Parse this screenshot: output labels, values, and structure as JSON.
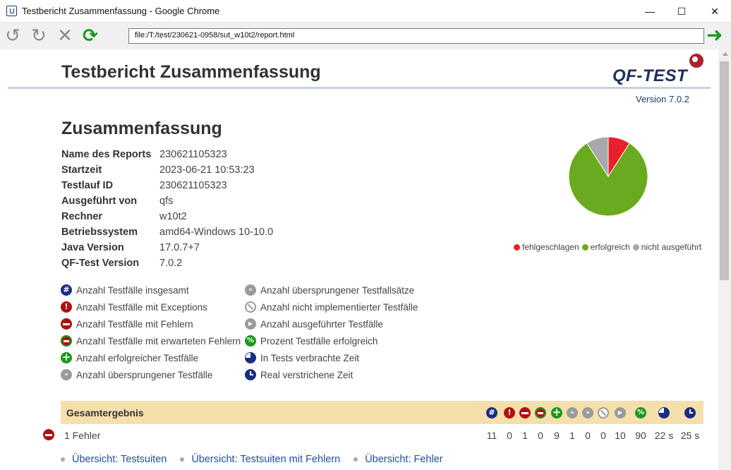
{
  "window": {
    "title": "Testbericht Zusammenfassung - Google Chrome",
    "minimize": "—",
    "maximize": "☐",
    "close": "✕"
  },
  "toolbar": {
    "address": "file:/T:/test/230621-0958/sut_w10t2/report.html"
  },
  "page": {
    "title": "Testbericht Zusammenfassung",
    "logo": "QF-TEST",
    "version": "Version 7.0.2",
    "section_title": "Zusammenfassung"
  },
  "info": [
    {
      "key": "Name des Reports",
      "value": "230621105323"
    },
    {
      "key": "Startzeit",
      "value": "2023-06-21 10:53:23"
    },
    {
      "key": "Testlauf ID",
      "value": "230621105323"
    },
    {
      "key": "Ausgeführt von",
      "value": "qfs"
    },
    {
      "key": "Rechner",
      "value": "w10t2"
    },
    {
      "key": "Betriebssystem",
      "value": "amd64-Windows 10-10.0"
    },
    {
      "key": "Java Version",
      "value": "17.0.7+7"
    },
    {
      "key": "QF-Test Version",
      "value": "7.0.2"
    }
  ],
  "pie": {
    "slices": [
      {
        "label": "fehlgeschlagen",
        "value": 1,
        "color": "#e8202a"
      },
      {
        "label": "erfolgreich",
        "value": 9,
        "color": "#6aaa1e"
      },
      {
        "label": "nicht ausgeführt",
        "value": 1,
        "color": "#a8a8a8"
      }
    ]
  },
  "legend_col1": [
    {
      "icon": "hash-icon",
      "label": "Anzahl Testfälle insgesamt"
    },
    {
      "icon": "exception-icon",
      "label": "Anzahl Testfälle mit Exceptions"
    },
    {
      "icon": "error-icon",
      "label": "Anzahl Testfälle mit Fehlern"
    },
    {
      "icon": "expected-error-icon",
      "label": "Anzahl Testfälle mit erwarteten Fehlern"
    },
    {
      "icon": "success-icon",
      "label": "Anzahl erfolgreicher Testfälle"
    },
    {
      "icon": "skipped-icon",
      "label": "Anzahl übersprungener Testfälle"
    }
  ],
  "legend_col2": [
    {
      "icon": "skipped-set-icon",
      "label": "Anzahl übersprungener Testfallsätze"
    },
    {
      "icon": "not-implemented-icon",
      "label": "Anzahl nicht implementierter Testfälle"
    },
    {
      "icon": "executed-icon",
      "label": "Anzahl ausgeführter Testfälle"
    },
    {
      "icon": "percent-icon",
      "label": "Prozent Testfälle erfolgreich"
    },
    {
      "icon": "test-time-icon",
      "label": "In Tests verbrachte Zeit"
    },
    {
      "icon": "clock-icon",
      "label": "Real verstrichene Zeit"
    }
  ],
  "summary": {
    "title": "Gesamtergebnis",
    "result_label": "1 Fehler",
    "values": [
      "11",
      "0",
      "1",
      "0",
      "9",
      "1",
      "0",
      "0",
      "10",
      "90",
      "22 s",
      "25 s"
    ]
  },
  "links": [
    "Übersicht: Testsuiten",
    "Übersicht: Testsuiten mit Fehlern",
    "Übersicht: Fehler"
  ]
}
